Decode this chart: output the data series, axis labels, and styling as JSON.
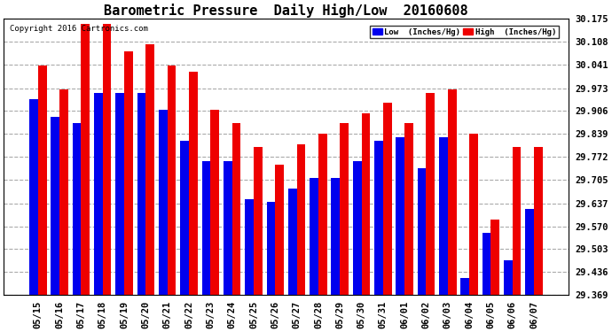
{
  "title": "Barometric Pressure  Daily High/Low  20160608",
  "copyright": "Copyright 2016 Cartronics.com",
  "legend_low": "Low  (Inches/Hg)",
  "legend_high": "High  (Inches/Hg)",
  "dates": [
    "05/15",
    "05/16",
    "05/17",
    "05/18",
    "05/19",
    "05/20",
    "05/21",
    "05/22",
    "05/23",
    "05/24",
    "05/25",
    "05/26",
    "05/27",
    "05/28",
    "05/29",
    "05/30",
    "05/31",
    "06/01",
    "06/02",
    "06/03",
    "06/04",
    "06/05",
    "06/06",
    "06/07"
  ],
  "low_values": [
    29.94,
    29.89,
    29.87,
    29.96,
    29.96,
    29.96,
    29.91,
    29.82,
    29.76,
    29.76,
    29.65,
    29.64,
    29.68,
    29.71,
    29.71,
    29.76,
    29.82,
    29.83,
    29.74,
    29.83,
    29.42,
    29.55,
    29.47,
    29.62
  ],
  "high_values": [
    30.04,
    29.97,
    30.16,
    30.16,
    30.08,
    30.1,
    30.04,
    30.02,
    29.91,
    29.87,
    29.8,
    29.75,
    29.81,
    29.84,
    29.87,
    29.9,
    29.93,
    29.87,
    29.96,
    29.97,
    29.84,
    29.59,
    29.8,
    29.8
  ],
  "yticks": [
    29.369,
    29.436,
    29.503,
    29.57,
    29.637,
    29.705,
    29.772,
    29.839,
    29.906,
    29.973,
    30.041,
    30.108,
    30.175
  ],
  "ymin": 29.369,
  "ymax": 30.175,
  "bg_color": "#ffffff",
  "plot_bg_color": "#ffffff",
  "low_color": "#0000ee",
  "high_color": "#ee0000",
  "grid_color": "#aaaaaa",
  "title_fontsize": 11,
  "tick_fontsize": 7.5,
  "bar_width": 0.4
}
